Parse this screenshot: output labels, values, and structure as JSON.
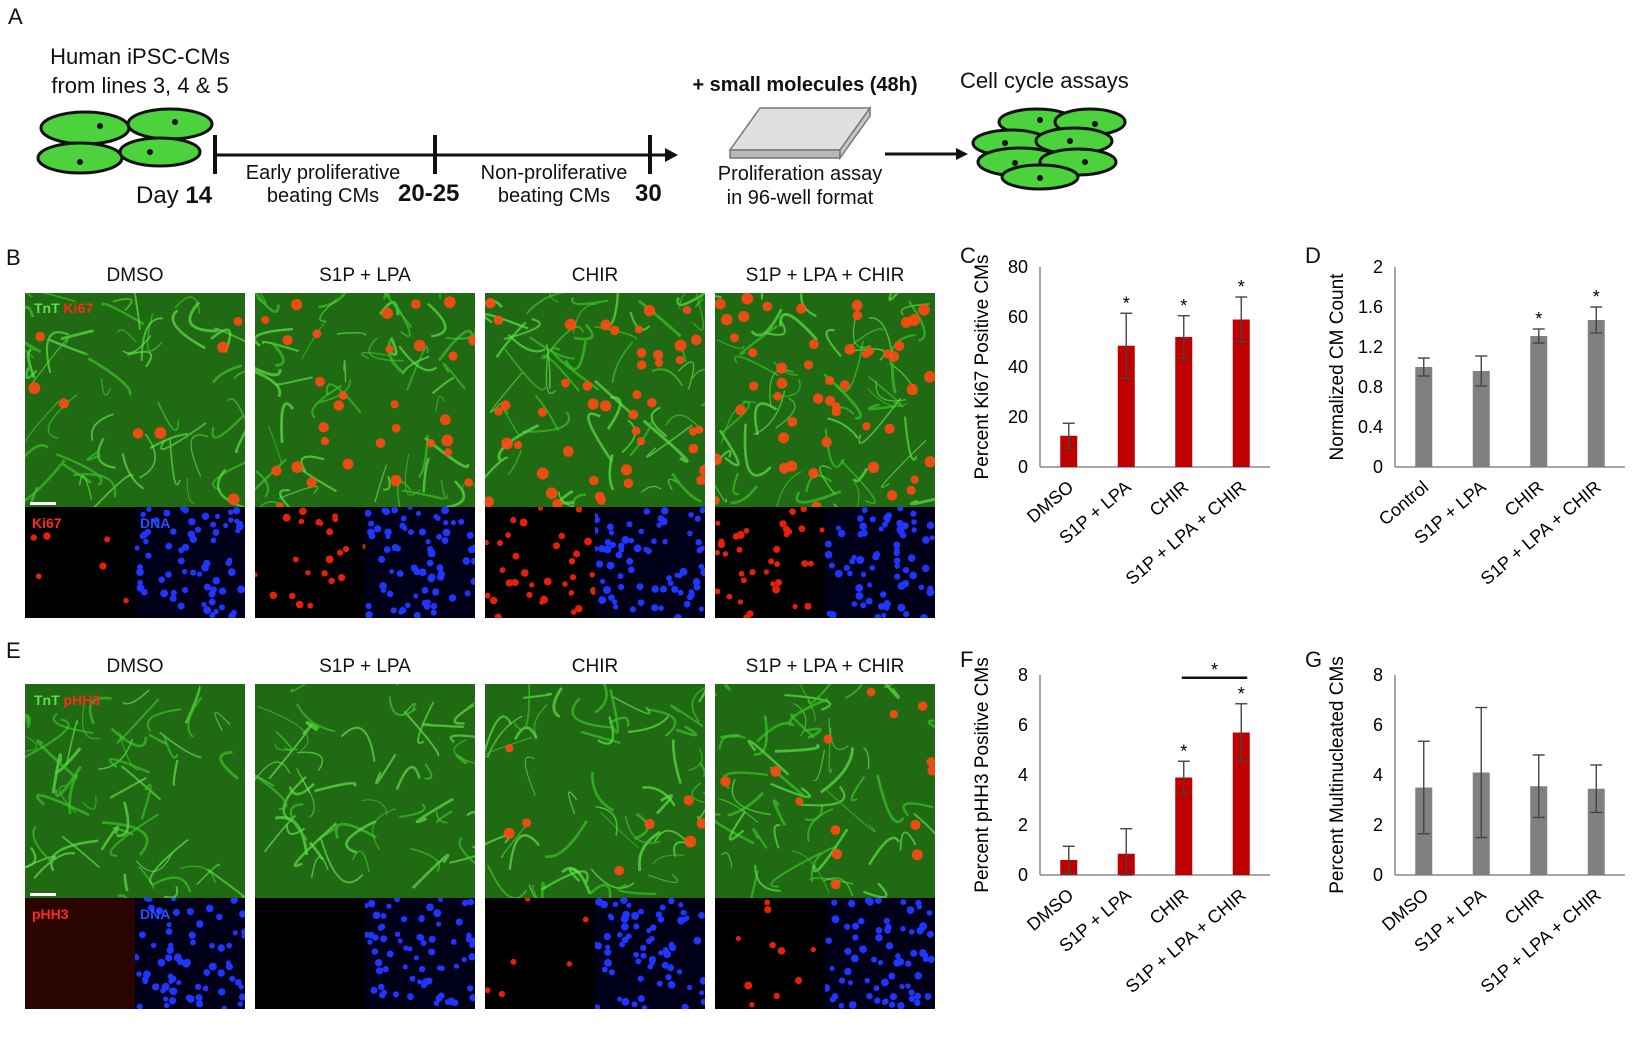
{
  "panelA": {
    "letter": "A",
    "cells_text_1": "Human iPSC-CMs",
    "cells_text_2": "from lines 3, 4 & 5",
    "day_word": "Day",
    "day_14": "14",
    "day_20_25": "20-25",
    "day_30": "30",
    "phase1_1": "Early proliferative",
    "phase1_2": "beating CMs",
    "phase2_1": "Non-proliferative",
    "phase2_2": "beating CMs",
    "molecules": "+ small molecules (48h)",
    "assay_1": "Proliferation assay",
    "assay_2": "in 96-well format",
    "cellcycle": "Cell cycle assays",
    "cell_color": "#4cd23c"
  },
  "panelB": {
    "letter": "B",
    "titles": [
      "DMSO",
      "S1P + LPA",
      "CHIR",
      "S1P + LPA + CHIR"
    ],
    "stain1": "TnT",
    "stain2": "Ki67",
    "sub_red": "Ki67",
    "sub_blue": "DNA",
    "red_density": [
      0.15,
      0.55,
      0.8,
      0.9
    ]
  },
  "panelE": {
    "letter": "E",
    "titles": [
      "DMSO",
      "S1P + LPA",
      "CHIR",
      "S1P + LPA + CHIR"
    ],
    "stain1": "TnT",
    "stain2": "pHH3",
    "sub_red": "pHH3",
    "sub_blue": "DNA",
    "red_density": [
      0.0,
      0.0,
      0.15,
      0.25
    ]
  },
  "colors": {
    "red_bar": "#c00000",
    "grey_bar": "#808080",
    "green": "#3fae2a",
    "blue": "#1a2cff",
    "nucleus_red": "#ff3b1a"
  },
  "chart_data": [
    {
      "id": "C",
      "letter": "C",
      "type": "bar",
      "categories": [
        "DMSO",
        "S1P + LPA",
        "CHIR",
        "S1P + LPA + CHIR"
      ],
      "values": [
        12.5,
        48.5,
        52,
        59
      ],
      "errors": [
        5,
        13,
        8.5,
        9
      ],
      "significant": [
        false,
        true,
        true,
        true
      ],
      "ylabel": "Percent Ki67 Positive CMs",
      "ylim": [
        0,
        80
      ],
      "ticks": [
        0,
        20,
        40,
        60,
        80
      ],
      "color": "#c00000"
    },
    {
      "id": "D",
      "letter": "D",
      "type": "bar",
      "categories": [
        "Control",
        "S1P + LPA",
        "CHIR",
        "S1P + LPA + CHIR"
      ],
      "values": [
        1.0,
        0.96,
        1.31,
        1.47
      ],
      "errors": [
        0.09,
        0.15,
        0.07,
        0.13
      ],
      "significant": [
        false,
        false,
        true,
        true
      ],
      "ylabel": "Normalized CM Count",
      "ylim": [
        0,
        2
      ],
      "ticks": [
        0,
        0.4,
        0.8,
        1.2,
        1.6,
        2
      ],
      "color": "#808080"
    },
    {
      "id": "F",
      "letter": "F",
      "type": "bar",
      "categories": [
        "DMSO",
        "S1P + LPA",
        "CHIR",
        "S1P + LPA + CHIR"
      ],
      "values": [
        0.6,
        0.85,
        3.9,
        5.7
      ],
      "errors": [
        0.55,
        1.0,
        0.65,
        1.15
      ],
      "significant": [
        false,
        false,
        true,
        true
      ],
      "bracket": {
        "from": 2,
        "to": 3,
        "label": "*"
      },
      "ylabel": "Percent pHH3 Positive CMs",
      "ylim": [
        0,
        8
      ],
      "ticks": [
        0,
        2,
        4,
        6,
        8
      ],
      "color": "#c00000"
    },
    {
      "id": "G",
      "letter": "G",
      "type": "bar",
      "categories": [
        "DMSO",
        "S1P + LPA",
        "CHIR",
        "S1P + LPA + CHIR"
      ],
      "values": [
        3.5,
        4.1,
        3.55,
        3.45
      ],
      "errors": [
        1.85,
        2.6,
        1.25,
        0.95
      ],
      "significant": [
        false,
        false,
        false,
        false
      ],
      "ylabel": "Percent Multinucleated CMs",
      "ylim": [
        0,
        8
      ],
      "ticks": [
        0,
        2,
        4,
        6,
        8
      ],
      "color": "#808080"
    }
  ],
  "star": "*"
}
